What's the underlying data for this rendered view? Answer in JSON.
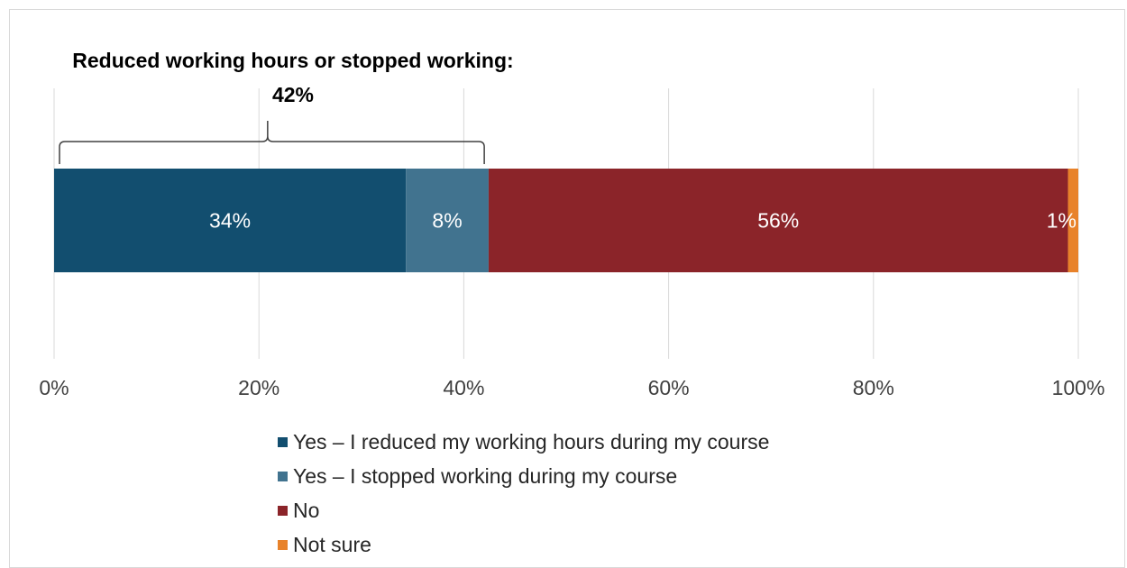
{
  "annotation": {
    "text": "Reduced working hours or stopped working: 42%"
  },
  "chart_data": {
    "type": "bar",
    "orientation": "horizontal",
    "stacked": true,
    "categories": [
      ""
    ],
    "series": [
      {
        "name": "Yes – I reduced my working hours during my course",
        "values": [
          34
        ],
        "label": "34%",
        "color": "#124e6f"
      },
      {
        "name": "Yes – I stopped working during my course",
        "values": [
          8
        ],
        "label": "8%",
        "color": "#41738f"
      },
      {
        "name": "No",
        "values": [
          56
        ],
        "label": "56%",
        "color": "#8b2429"
      },
      {
        "name": "Not sure",
        "values": [
          1
        ],
        "label": "1%",
        "color": "#e8822a"
      }
    ],
    "bracket": {
      "from": 0,
      "to": 42
    },
    "xlim": [
      0,
      100
    ],
    "xticks": [
      "0%",
      "20%",
      "40%",
      "60%",
      "80%",
      "100%"
    ],
    "grid": true,
    "legend_position": "bottom"
  }
}
